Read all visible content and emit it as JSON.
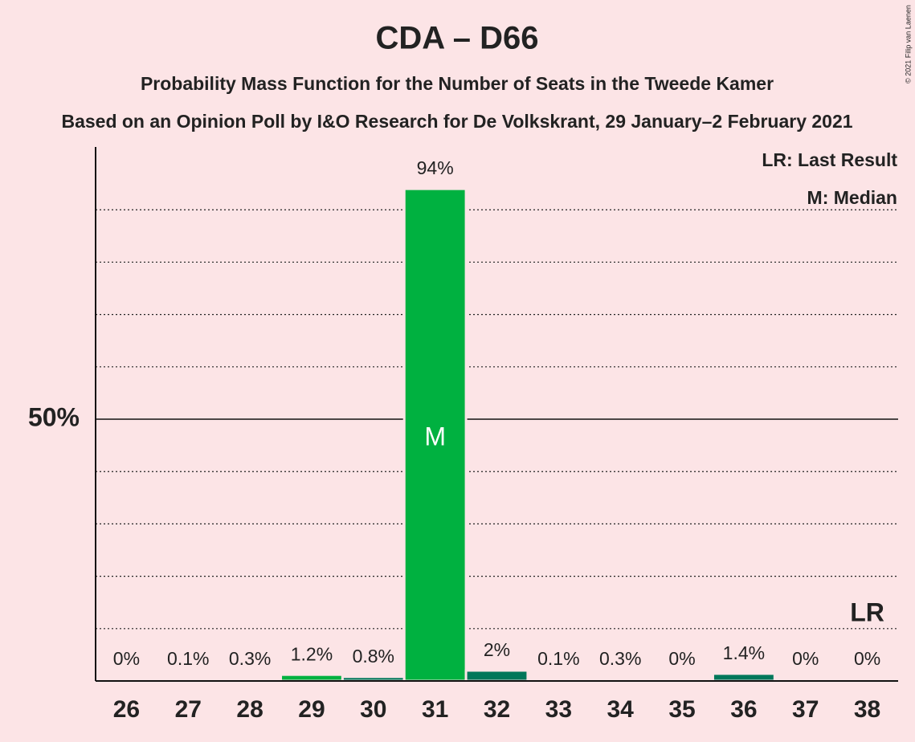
{
  "chart_data": {
    "type": "bar",
    "title": "CDA – D66",
    "subtitle": "Probability Mass Function for the Number of Seats in the Tweede Kamer",
    "subtitle2": "Based on an Opinion Poll by I&O Research for De Volkskrant, 29 January–2 February 2021",
    "credit": "© 2021 Filip van Laenen",
    "categories": [
      "26",
      "27",
      "28",
      "29",
      "30",
      "31",
      "32",
      "33",
      "34",
      "35",
      "36",
      "37",
      "38"
    ],
    "values": [
      0,
      0.1,
      0.3,
      1.2,
      0.8,
      94,
      2,
      0.1,
      0.3,
      0,
      1.4,
      0,
      0
    ],
    "value_labels": [
      "0%",
      "0.1%",
      "0.3%",
      "1.2%",
      "0.8%",
      "94%",
      "2%",
      "0.1%",
      "0.3%",
      "0%",
      "1.4%",
      "0%",
      "0%"
    ],
    "colors": [
      "#00b140",
      "#00b140",
      "#00b140",
      "#00b140",
      "#00775a",
      "#00b140",
      "#00775a",
      "#00775a",
      "#00775a",
      "#00775a",
      "#00775a",
      "#00775a",
      "#00775a"
    ],
    "ylim": [
      0,
      102
    ],
    "yticks": [
      {
        "value": 50,
        "label": "50%"
      }
    ],
    "minor_grid": [
      10,
      20,
      30,
      40,
      60,
      70,
      80,
      90
    ],
    "median": {
      "label": "M",
      "category": "31"
    },
    "last_result": {
      "label": "LR",
      "category": "38"
    },
    "legend": [
      "LR: Last Result",
      "M: Median"
    ]
  }
}
